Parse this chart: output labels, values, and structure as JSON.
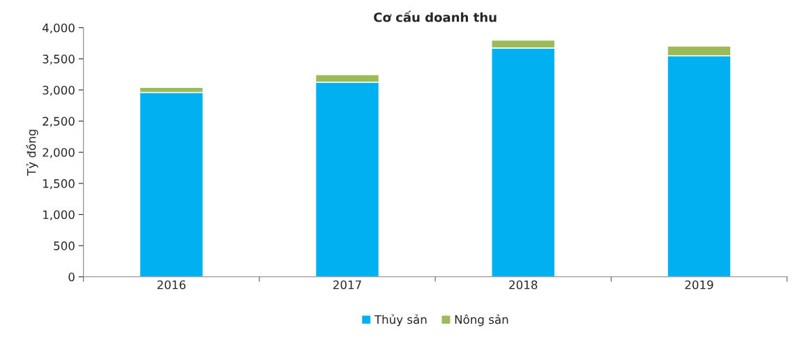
{
  "chart_data": {
    "type": "bar",
    "title": "Cơ cấu doanh thu",
    "ylabel": "Tỷ đồng",
    "categories": [
      "2016",
      "2017",
      "2018",
      "2019"
    ],
    "stacked": true,
    "series": [
      {
        "name": "Thủy sản",
        "color": "#00b0f0",
        "values": [
          2960,
          3125,
          3675,
          3550
        ]
      },
      {
        "name": "Nông sản",
        "color": "#9bbb59",
        "values": [
          80,
          120,
          125,
          155
        ]
      }
    ],
    "ylim": [
      0,
      4000
    ],
    "yticks": [
      0,
      500,
      {
        "value": 1000,
        "label": "1,000"
      },
      {
        "value": 1500,
        "label": "1,500"
      },
      {
        "value": 2000,
        "label": "2,000"
      },
      {
        "value": 2500,
        "label": "2,500"
      },
      {
        "value": 3000,
        "label": "3,000"
      },
      {
        "value": 3500,
        "label": "3,500"
      },
      {
        "value": 4000,
        "label": "4,000"
      }
    ],
    "grid": false,
    "legend": "bottom"
  }
}
